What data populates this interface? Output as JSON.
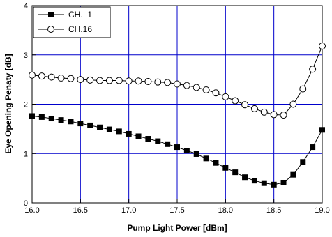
{
  "chart_data": {
    "type": "line",
    "title": "",
    "xlabel": "Pump Light Power [dBm]",
    "ylabel": "Eye Opening Penaty [dB]",
    "xlim": [
      16.0,
      19.0
    ],
    "ylim": [
      0,
      4
    ],
    "xticks": [
      "16.0",
      "16.5",
      "17.0",
      "17.5",
      "18.0",
      "18.5",
      "19.0"
    ],
    "yticks": [
      "0",
      "1",
      "2",
      "3",
      "4"
    ],
    "grid": true,
    "grid_color": "#0000cc",
    "legend_position": "top-left",
    "series": [
      {
        "name": "CH.  1",
        "marker": "filled-square",
        "color": "#000000",
        "x": [
          16.0,
          16.1,
          16.2,
          16.3,
          16.4,
          16.5,
          16.6,
          16.7,
          16.8,
          16.9,
          17.0,
          17.1,
          17.2,
          17.3,
          17.4,
          17.5,
          17.6,
          17.7,
          17.8,
          17.9,
          18.0,
          18.1,
          18.2,
          18.3,
          18.4,
          18.5,
          18.6,
          18.7,
          18.8,
          18.9,
          19.0
        ],
        "y": [
          1.76,
          1.74,
          1.71,
          1.68,
          1.65,
          1.61,
          1.57,
          1.53,
          1.49,
          1.45,
          1.4,
          1.35,
          1.3,
          1.25,
          1.19,
          1.13,
          1.06,
          0.99,
          0.9,
          0.81,
          0.71,
          0.62,
          0.52,
          0.45,
          0.4,
          0.37,
          0.41,
          0.57,
          0.83,
          1.13,
          1.48
        ]
      },
      {
        "name": "CH.16",
        "marker": "open-circle",
        "color": "#000000",
        "x": [
          16.0,
          16.1,
          16.2,
          16.3,
          16.4,
          16.5,
          16.6,
          16.7,
          16.8,
          16.9,
          17.0,
          17.1,
          17.2,
          17.3,
          17.4,
          17.5,
          17.6,
          17.7,
          17.8,
          17.9,
          18.0,
          18.1,
          18.2,
          18.3,
          18.4,
          18.5,
          18.6,
          18.7,
          18.8,
          18.9,
          19.0
        ],
        "y": [
          2.59,
          2.57,
          2.55,
          2.53,
          2.52,
          2.5,
          2.49,
          2.48,
          2.48,
          2.48,
          2.47,
          2.47,
          2.46,
          2.45,
          2.44,
          2.41,
          2.38,
          2.34,
          2.29,
          2.23,
          2.15,
          2.07,
          1.99,
          1.91,
          1.84,
          1.79,
          1.78,
          2.0,
          2.31,
          2.71,
          3.18
        ]
      }
    ]
  }
}
